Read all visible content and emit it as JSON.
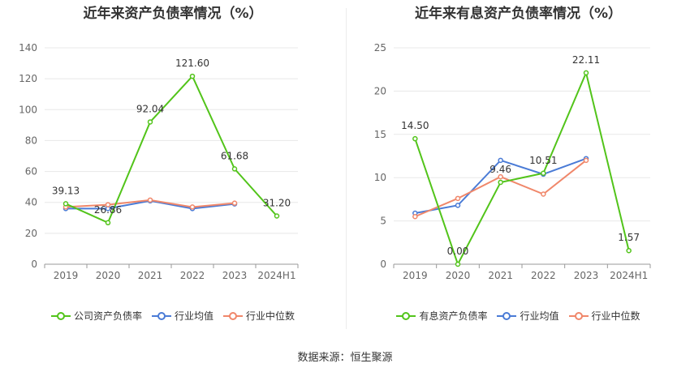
{
  "source": "数据来源：恒生聚源",
  "chart_data": [
    {
      "type": "line",
      "title": "近年来资产负债率情况（%）",
      "categories": [
        "2019",
        "2020",
        "2021",
        "2022",
        "2023",
        "2024H1"
      ],
      "ylim": [
        0,
        140
      ],
      "yticks": [
        0,
        20,
        40,
        60,
        80,
        100,
        120,
        140
      ],
      "grid": true,
      "legend_position": "bottom",
      "series": [
        {
          "name": "公司资产负债率",
          "color": "#52c41a",
          "values": [
            39.13,
            26.86,
            92.04,
            121.6,
            61.68,
            31.2
          ],
          "labels": [
            "39.13",
            "26.86",
            "92.04",
            "121.60",
            "61.68",
            "31.20"
          ]
        },
        {
          "name": "行业均值",
          "color": "#4a7bd6",
          "values": [
            36.0,
            36.0,
            41.0,
            36.0,
            39.0,
            null
          ]
        },
        {
          "name": "行业中位数",
          "color": "#f0876a",
          "values": [
            37.0,
            38.5,
            41.5,
            37.0,
            39.5,
            null
          ]
        }
      ]
    },
    {
      "type": "line",
      "title": "近年来有息资产负债率情况（%）",
      "categories": [
        "2019",
        "2020",
        "2021",
        "2022",
        "2023",
        "2024H1"
      ],
      "ylim": [
        0,
        25
      ],
      "yticks": [
        0,
        5,
        10,
        15,
        20,
        25
      ],
      "grid": true,
      "legend_position": "bottom",
      "series": [
        {
          "name": "有息资产负债率",
          "color": "#52c41a",
          "values": [
            14.5,
            0.0,
            9.46,
            10.51,
            22.11,
            1.57
          ],
          "labels": [
            "14.50",
            "0.00",
            "9.46",
            "10.51",
            "22.11",
            "1.57"
          ]
        },
        {
          "name": "行业均值",
          "color": "#4a7bd6",
          "values": [
            5.9,
            6.8,
            12.0,
            10.4,
            12.2,
            null
          ]
        },
        {
          "name": "行业中位数",
          "color": "#f0876a",
          "values": [
            5.5,
            7.6,
            10.1,
            8.1,
            12.0,
            null
          ]
        }
      ]
    }
  ]
}
